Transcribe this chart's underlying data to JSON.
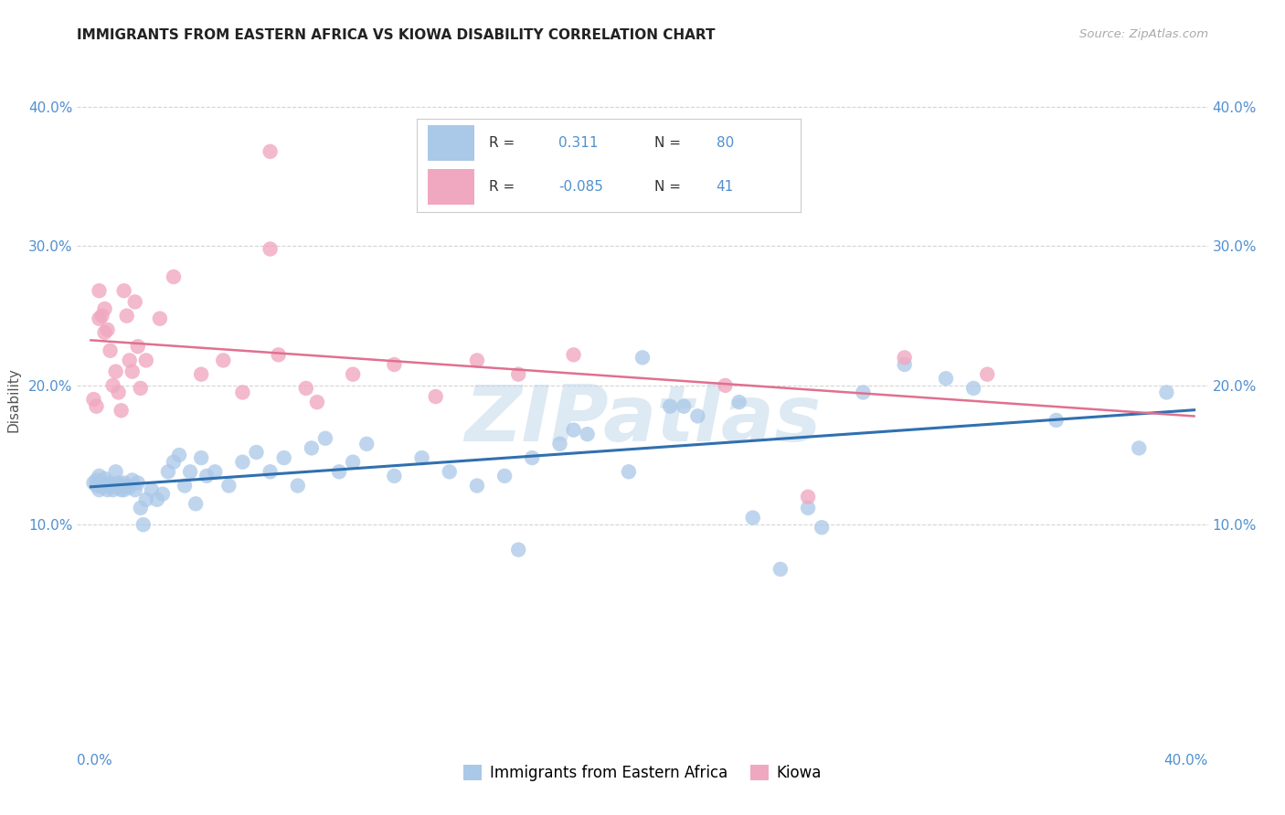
{
  "title": "IMMIGRANTS FROM EASTERN AFRICA VS KIOWA DISABILITY CORRELATION CHART",
  "source": "Source: ZipAtlas.com",
  "ylabel": "Disability",
  "xlim": [
    -0.005,
    0.405
  ],
  "ylim": [
    -0.05,
    0.43
  ],
  "yticks": [
    0.1,
    0.2,
    0.3,
    0.4
  ],
  "ytick_labels": [
    "10.0%",
    "20.0%",
    "30.0%",
    "40.0%"
  ],
  "xticks": [
    0.0,
    0.1,
    0.2,
    0.3,
    0.4
  ],
  "blue_R": 0.311,
  "blue_N": 80,
  "pink_R": -0.085,
  "pink_N": 41,
  "watermark": "ZIPatlas",
  "blue_color": "#aac8e8",
  "pink_color": "#f0a8c0",
  "blue_line_color": "#3070b0",
  "pink_line_color": "#e07090",
  "background_color": "#ffffff",
  "grid_color": "#d0d0d0",
  "legend_label_blue": "Immigrants from Eastern Africa",
  "legend_label_pink": "Kiowa",
  "text_color_axis": "#5090d0",
  "text_color_title": "#222222",
  "text_color_source": "#aaaaaa",
  "blue_scatter_x": [
    0.001,
    0.002,
    0.002,
    0.003,
    0.003,
    0.004,
    0.004,
    0.005,
    0.005,
    0.006,
    0.006,
    0.007,
    0.007,
    0.008,
    0.008,
    0.009,
    0.01,
    0.01,
    0.011,
    0.011,
    0.012,
    0.012,
    0.013,
    0.014,
    0.015,
    0.016,
    0.017,
    0.018,
    0.019,
    0.02,
    0.022,
    0.024,
    0.026,
    0.028,
    0.03,
    0.032,
    0.034,
    0.036,
    0.038,
    0.04,
    0.042,
    0.045,
    0.05,
    0.055,
    0.06,
    0.065,
    0.07,
    0.075,
    0.08,
    0.085,
    0.09,
    0.095,
    0.1,
    0.11,
    0.12,
    0.13,
    0.14,
    0.15,
    0.16,
    0.17,
    0.18,
    0.195,
    0.21,
    0.22,
    0.235,
    0.25,
    0.265,
    0.28,
    0.295,
    0.31,
    0.155,
    0.175,
    0.2,
    0.215,
    0.32,
    0.35,
    0.38,
    0.39,
    0.24,
    0.26
  ],
  "blue_scatter_y": [
    0.13,
    0.128,
    0.132,
    0.125,
    0.135,
    0.127,
    0.13,
    0.128,
    0.133,
    0.125,
    0.128,
    0.13,
    0.127,
    0.125,
    0.128,
    0.138,
    0.13,
    0.127,
    0.125,
    0.128,
    0.13,
    0.125,
    0.128,
    0.127,
    0.132,
    0.125,
    0.13,
    0.112,
    0.1,
    0.118,
    0.125,
    0.118,
    0.122,
    0.138,
    0.145,
    0.15,
    0.128,
    0.138,
    0.115,
    0.148,
    0.135,
    0.138,
    0.128,
    0.145,
    0.152,
    0.138,
    0.148,
    0.128,
    0.155,
    0.162,
    0.138,
    0.145,
    0.158,
    0.135,
    0.148,
    0.138,
    0.128,
    0.135,
    0.148,
    0.158,
    0.165,
    0.138,
    0.185,
    0.178,
    0.188,
    0.068,
    0.098,
    0.195,
    0.215,
    0.205,
    0.082,
    0.168,
    0.22,
    0.185,
    0.198,
    0.175,
    0.155,
    0.195,
    0.105,
    0.112
  ],
  "pink_scatter_x": [
    0.001,
    0.002,
    0.003,
    0.003,
    0.004,
    0.005,
    0.005,
    0.006,
    0.007,
    0.008,
    0.009,
    0.01,
    0.011,
    0.012,
    0.013,
    0.014,
    0.015,
    0.016,
    0.017,
    0.018,
    0.02,
    0.025,
    0.03,
    0.04,
    0.048,
    0.055,
    0.065,
    0.068,
    0.078,
    0.082,
    0.095,
    0.11,
    0.125,
    0.14,
    0.065,
    0.23,
    0.295,
    0.325,
    0.26,
    0.155,
    0.175
  ],
  "pink_scatter_y": [
    0.19,
    0.185,
    0.268,
    0.248,
    0.25,
    0.255,
    0.238,
    0.24,
    0.225,
    0.2,
    0.21,
    0.195,
    0.182,
    0.268,
    0.25,
    0.218,
    0.21,
    0.26,
    0.228,
    0.198,
    0.218,
    0.248,
    0.278,
    0.208,
    0.218,
    0.195,
    0.368,
    0.222,
    0.198,
    0.188,
    0.208,
    0.215,
    0.192,
    0.218,
    0.298,
    0.2,
    0.22,
    0.208,
    0.12,
    0.208,
    0.222
  ]
}
